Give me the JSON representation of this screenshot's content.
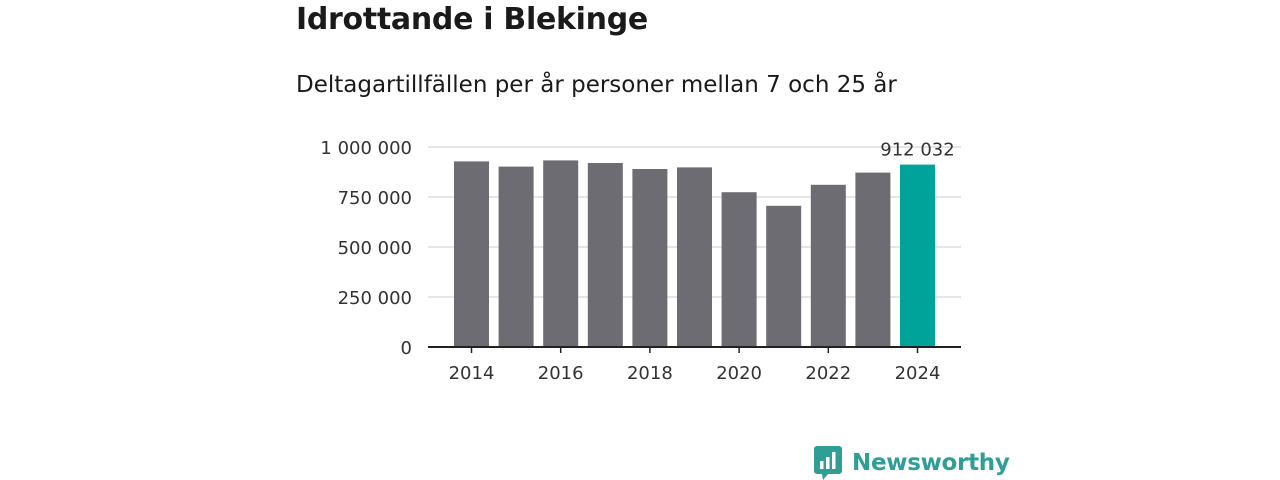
{
  "colors": {
    "bar": "#6d6c72",
    "highlight": "#00a39a",
    "grid": "#dddddd",
    "axis": "#222222",
    "brand": "#2e9e96"
  },
  "brand": {
    "name": "Newsworthy",
    "icon": "bar-chart-bubble-icon"
  },
  "chart_data": {
    "type": "bar",
    "title": "Idrottande i Blekinge",
    "subtitle": "Deltagartillfällen per år personer mellan 7 och 25 år",
    "xlabel": "",
    "ylabel": "",
    "categories": [
      "2014",
      "2015",
      "2016",
      "2017",
      "2018",
      "2019",
      "2020",
      "2021",
      "2022",
      "2023",
      "2024"
    ],
    "values": [
      928000,
      902000,
      933000,
      920000,
      890000,
      898000,
      774000,
      706000,
      811000,
      872000,
      912032
    ],
    "highlight_index": 10,
    "data_labels": [
      {
        "index": 10,
        "text": "912 032"
      }
    ],
    "x_tick_labels": [
      {
        "index": 0,
        "text": "2014"
      },
      {
        "index": 2,
        "text": "2016"
      },
      {
        "index": 4,
        "text": "2018"
      },
      {
        "index": 6,
        "text": "2020"
      },
      {
        "index": 8,
        "text": "2022"
      },
      {
        "index": 10,
        "text": "2024"
      }
    ],
    "y_ticks": [
      {
        "value": 0,
        "text": "0"
      },
      {
        "value": 250000,
        "text": "250 000"
      },
      {
        "value": 500000,
        "text": "500 000"
      },
      {
        "value": 750000,
        "text": "750 000"
      },
      {
        "value": 1000000,
        "text": "1 000 000"
      }
    ],
    "ylim": [
      0,
      1000000
    ],
    "grid": true,
    "legend": "none"
  }
}
